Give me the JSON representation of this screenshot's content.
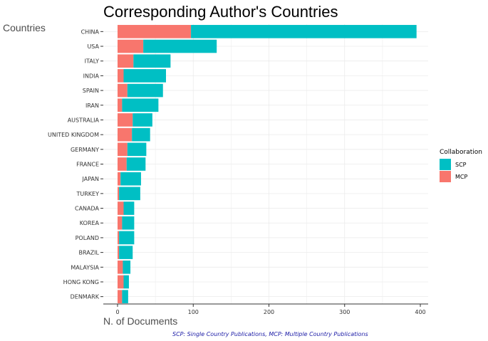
{
  "chart_data": {
    "type": "bar",
    "orientation": "horizontal",
    "stacked": true,
    "title": "Corresponding Author's Countries",
    "xlabel": "N. of Documents",
    "ylabel": "Countries",
    "caption": "SCP: Single Country Publications, MCP: Multiple Country Publications",
    "xlim": [
      0,
      400
    ],
    "xticks": [
      "0",
      "100",
      "200",
      "300",
      "400"
    ],
    "grid": true,
    "legend": {
      "title": "Collaboration",
      "position": "right",
      "labels": [
        "SCP",
        "MCP"
      ]
    },
    "colors": {
      "SCP": "#00bfc4",
      "MCP": "#f8766d"
    },
    "categories": [
      "CHINA",
      "USA",
      "ITALY",
      "INDIA",
      "SPAIN",
      "IRAN",
      "AUSTRALIA",
      "UNITED KINGDOM",
      "GERMANY",
      "FRANCE",
      "JAPAN",
      "TURKEY",
      "CANADA",
      "KOREA",
      "POLAND",
      "BRAZIL",
      "MALAYSIA",
      "HONG KONG",
      "DENMARK"
    ],
    "series": [
      {
        "name": "MCP",
        "values": [
          97,
          34,
          21,
          8,
          13,
          6,
          20,
          19,
          13,
          12,
          4,
          2,
          8,
          6,
          2,
          2,
          7,
          8,
          6
        ]
      },
      {
        "name": "SCP",
        "values": [
          298,
          97,
          49,
          56,
          47,
          48,
          26,
          24,
          25,
          25,
          27,
          28,
          14,
          16,
          20,
          18,
          10,
          7,
          8
        ]
      }
    ]
  }
}
